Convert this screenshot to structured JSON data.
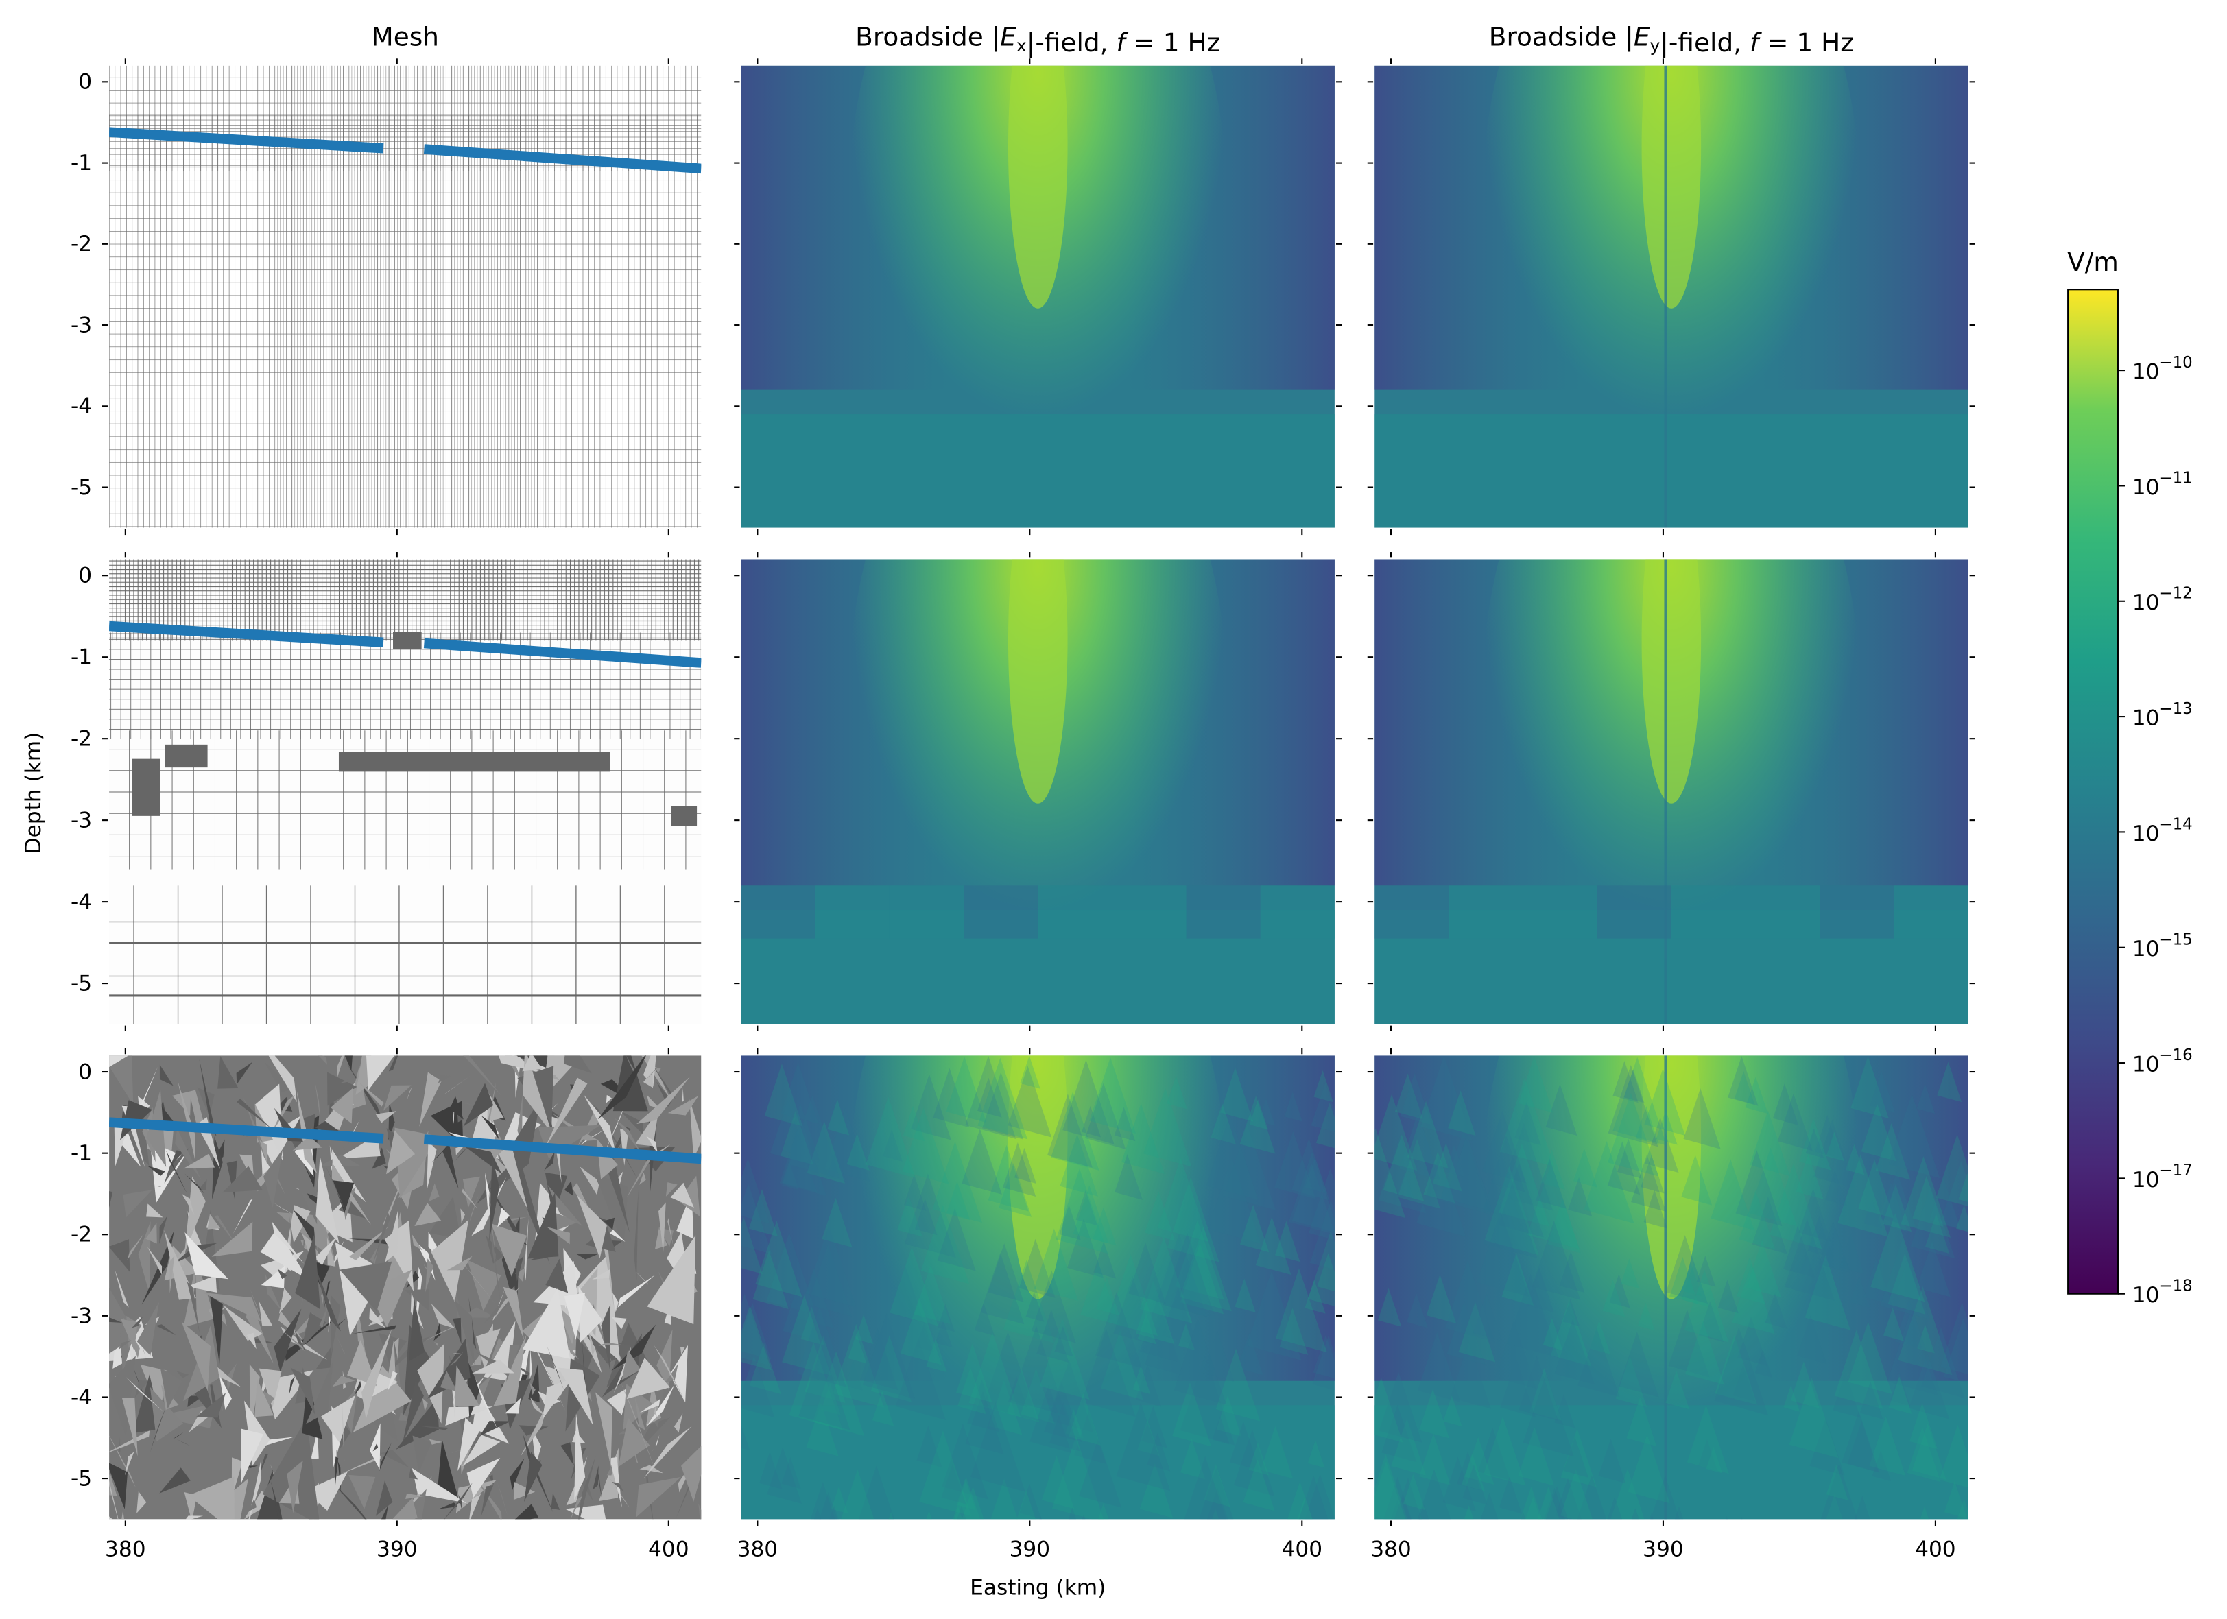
{
  "chart_data": {
    "type": "heatmap",
    "layout": "3 rows x 3 columns",
    "columns": [
      {
        "title": [
          {
            "t": "Mesh"
          }
        ]
      },
      {
        "title": [
          {
            "t": "Broadside |"
          },
          {
            "t": "E",
            "i": true
          },
          {
            "t": "x",
            "sub": true
          },
          {
            "t": "|-field, "
          },
          {
            "t": "f",
            "i": true
          },
          {
            "t": " = 1 Hz"
          }
        ]
      },
      {
        "title": [
          {
            "t": "Broadside |"
          },
          {
            "t": "E",
            "i": true
          },
          {
            "t": "y",
            "sub": true
          },
          {
            "t": "|-field, "
          },
          {
            "t": "f",
            "i": true
          },
          {
            "t": " = 1 Hz"
          }
        ]
      }
    ],
    "rows": [
      "regular rectilinear mesh",
      "octree mesh",
      "tetrahedral mesh"
    ],
    "xlabel": "Easting (km)",
    "ylabel": "Depth (km)",
    "xlim": [
      379.4,
      401.2
    ],
    "ylim": [
      -5.5,
      0.2
    ],
    "xticks": [
      380,
      390,
      400
    ],
    "yticks": [
      0,
      -1,
      -2,
      -3,
      -4,
      -5
    ],
    "source_line": {
      "color": "#1f77b4",
      "segments": [
        [
          [
            379.4,
            -0.62
          ],
          [
            389.5,
            -0.82
          ]
        ],
        [
          [
            391.0,
            -0.83
          ],
          [
            401.2,
            -1.07
          ]
        ]
      ]
    },
    "field": {
      "peak_easting": 390,
      "peak_depth": -1,
      "max_log10": -10.5,
      "background_log10": -14,
      "min_log10": -17
    },
    "colorbar": {
      "label": "V/m",
      "scale": "log",
      "colormap": "viridis",
      "range_log10": [
        -18,
        -9.3
      ],
      "tick_exponents": [
        -10,
        -11,
        -12,
        -13,
        -14,
        -15,
        -16,
        -17,
        -18
      ],
      "tick_base": "10"
    }
  }
}
